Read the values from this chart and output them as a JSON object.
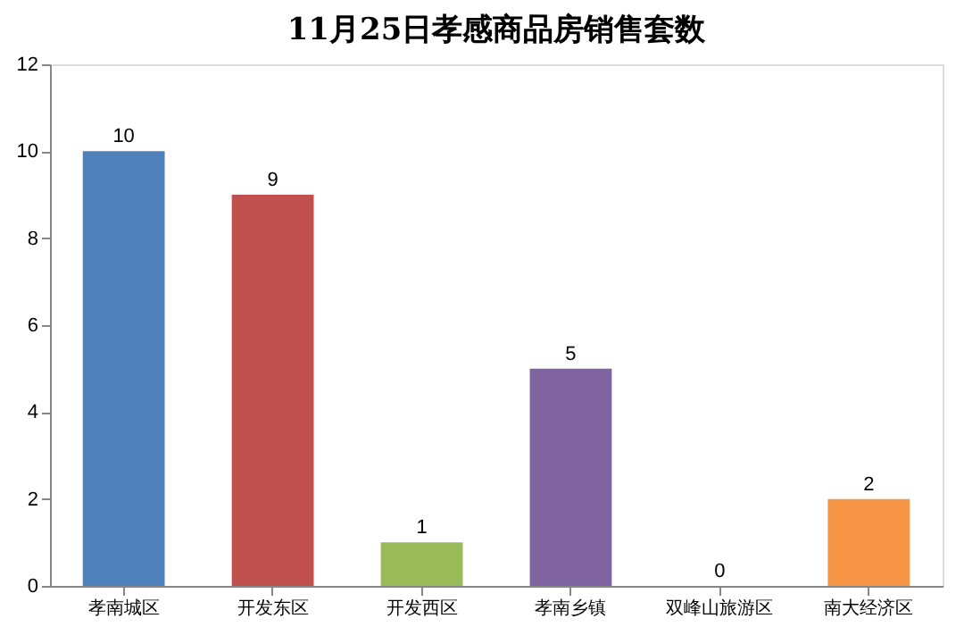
{
  "chart_data": {
    "type": "bar",
    "title": "11月25日孝感商品房销售套数",
    "categories": [
      "孝南城区",
      "开发东区",
      "开发西区",
      "孝南乡镇",
      "双峰山旅游区",
      "南大经济区"
    ],
    "values": [
      10,
      9,
      1,
      5,
      0,
      2
    ],
    "colors": [
      "#4f81bd",
      "#c0504d",
      "#9bbb59",
      "#8064a2",
      "#4bacc6",
      "#f79646"
    ],
    "ylim": [
      0,
      12
    ],
    "yticks": [
      0,
      2,
      4,
      6,
      8,
      10,
      12
    ],
    "grid": false,
    "legend": false,
    "data_labels": true
  }
}
